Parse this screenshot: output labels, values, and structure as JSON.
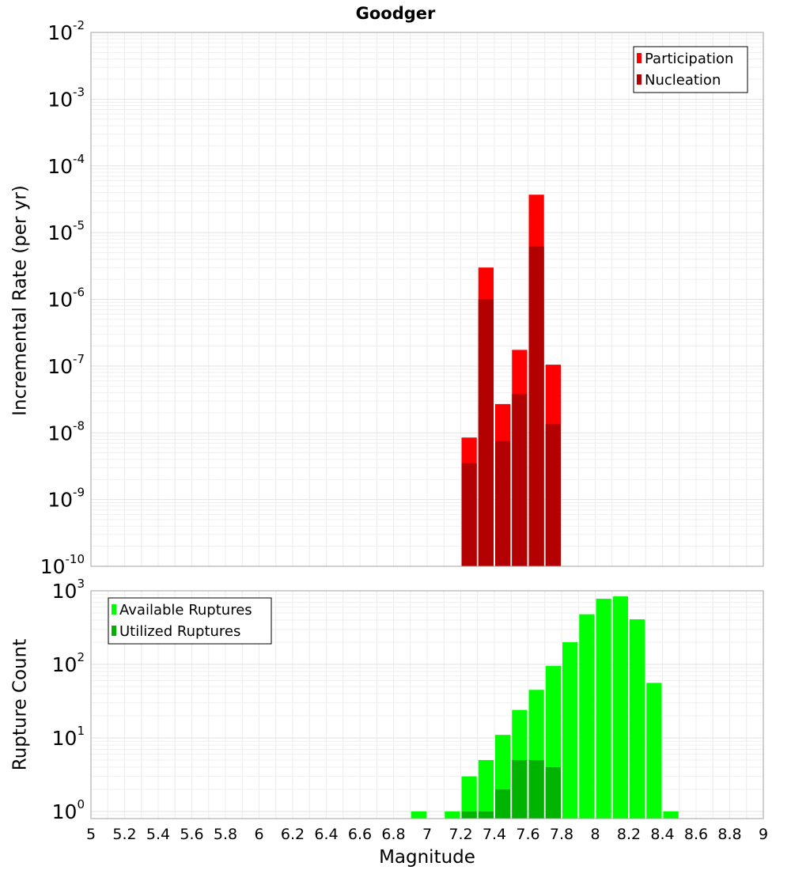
{
  "chart_data": [
    {
      "type": "bar",
      "title": "Goodger",
      "ylabel": "Incremental Rate (per yr)",
      "xlabel": "",
      "yscale": "log",
      "ylim": [
        1e-10,
        0.01
      ],
      "xlim": [
        5,
        9
      ],
      "y_ticks": [
        {
          "base": "10",
          "exp": "-10"
        },
        {
          "base": "10",
          "exp": "-9"
        },
        {
          "base": "10",
          "exp": "-8"
        },
        {
          "base": "10",
          "exp": "-7"
        },
        {
          "base": "10",
          "exp": "-6"
        },
        {
          "base": "10",
          "exp": "-5"
        },
        {
          "base": "10",
          "exp": "-4"
        },
        {
          "base": "10",
          "exp": "-3"
        },
        {
          "base": "10",
          "exp": "-2"
        }
      ],
      "legend": {
        "placement": "top-right",
        "entries": [
          {
            "label": "Participation",
            "color": "#ff0000"
          },
          {
            "label": "Nucleation",
            "color": "#b30000"
          }
        ]
      },
      "bar_width": 0.1,
      "series": [
        {
          "name": "Participation",
          "color": "#ff0000",
          "x": [
            7.25,
            7.35,
            7.45,
            7.55,
            7.65,
            7.75
          ],
          "values": [
            8.5e-09,
            3e-06,
            2.7e-08,
            1.75e-07,
            3.7e-05,
            1.05e-07
          ]
        },
        {
          "name": "Nucleation",
          "color": "#b30000",
          "x": [
            7.25,
            7.35,
            7.45,
            7.55,
            7.65,
            7.75
          ],
          "values": [
            3.5e-09,
            1e-06,
            7.5e-09,
            3.8e-08,
            6.2e-06,
            1.35e-08
          ]
        }
      ]
    },
    {
      "type": "bar",
      "title": "",
      "xlabel": "Magnitude",
      "ylabel": "Rupture Count",
      "yscale": "log",
      "ylim": [
        0.8,
        1000
      ],
      "xlim": [
        5,
        9
      ],
      "x_ticks": [
        "5",
        "5.2",
        "5.4",
        "5.6",
        "5.8",
        "6",
        "6.2",
        "6.4",
        "6.6",
        "6.8",
        "7",
        "7.2",
        "7.4",
        "7.6",
        "7.8",
        "8",
        "8.2",
        "8.4",
        "8.6",
        "8.8",
        "9"
      ],
      "y_ticks": [
        {
          "base": "10",
          "exp": "0"
        },
        {
          "base": "10",
          "exp": "1"
        },
        {
          "base": "10",
          "exp": "2"
        },
        {
          "base": "10",
          "exp": "3"
        }
      ],
      "legend": {
        "placement": "top-left",
        "entries": [
          {
            "label": "Available Ruptures",
            "color": "#00ff00"
          },
          {
            "label": "Utilized Ruptures",
            "color": "#00b300"
          }
        ]
      },
      "bar_width": 0.1,
      "series": [
        {
          "name": "Available Ruptures",
          "color": "#00ff00",
          "x": [
            6.95,
            7.15,
            7.25,
            7.35,
            7.45,
            7.55,
            7.65,
            7.75,
            7.85,
            7.95,
            8.05,
            8.15,
            8.25,
            8.35,
            8.45
          ],
          "values": [
            1,
            1,
            3,
            5,
            11,
            24,
            45,
            95,
            200,
            480,
            780,
            840,
            410,
            56,
            1
          ]
        },
        {
          "name": "Utilized Ruptures",
          "color": "#00b300",
          "x": [
            7.25,
            7.35,
            7.45,
            7.55,
            7.65,
            7.75
          ],
          "values": [
            1,
            1,
            2,
            5,
            5,
            4
          ]
        }
      ]
    }
  ]
}
